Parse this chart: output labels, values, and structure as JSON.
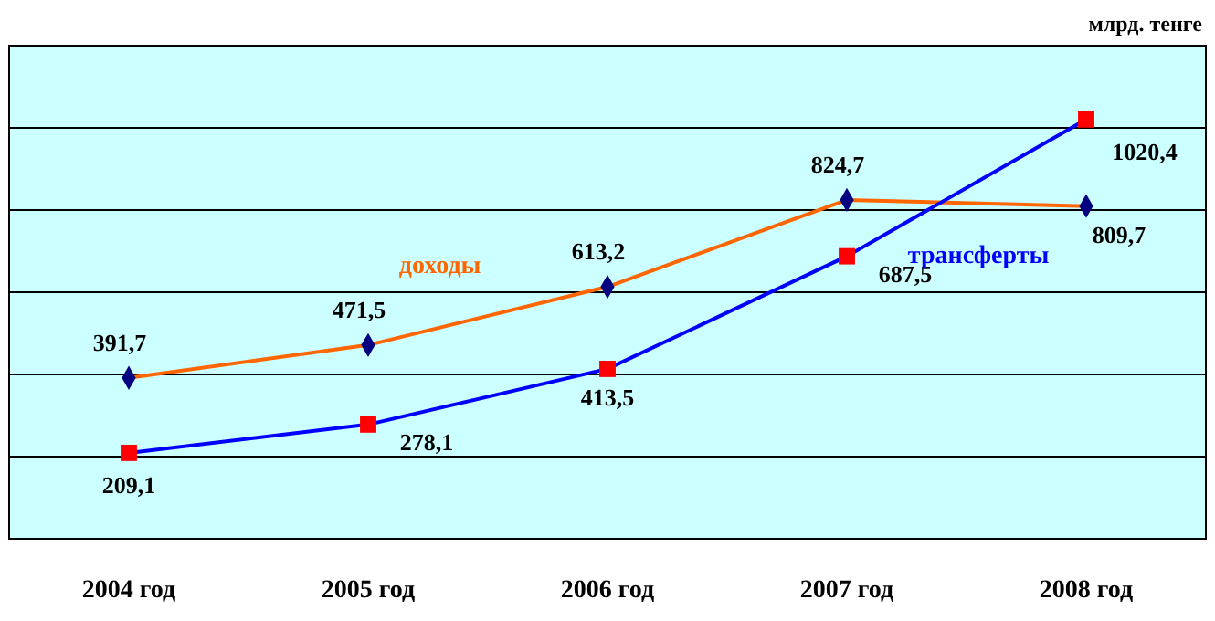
{
  "chart_data": {
    "type": "line",
    "ylabel": "млрд. тенге",
    "categories": [
      "2004 год",
      "2005 год",
      "2006 год",
      "2007 год",
      "2008 год"
    ],
    "series": [
      {
        "name": "доходы",
        "color": "#ff6600",
        "marker": "diamond",
        "values": [
          391.7,
          471.5,
          613.2,
          824.7,
          809.7
        ],
        "value_labels": [
          "391,7",
          "471,5",
          "613,2",
          "824,7",
          "809,7"
        ]
      },
      {
        "name": "трансферты",
        "color": "#0000ff",
        "marker": "square",
        "values": [
          209.1,
          278.1,
          413.5,
          687.5,
          1020.4
        ],
        "value_labels": [
          "209,1",
          "278,1",
          "413,5",
          "687,5",
          "1020,4"
        ]
      }
    ],
    "ylim": [
      0,
      1200
    ],
    "yticks": [
      {
        "value": 0,
        "label": null
      },
      {
        "value": 200,
        "label": null
      },
      {
        "value": 400,
        "label": null
      },
      {
        "value": 600,
        "label": null
      },
      {
        "value": 800,
        "label": null
      },
      {
        "value": 1000,
        "label": null
      },
      {
        "value": 1200,
        "label": null
      }
    ],
    "grid": "y",
    "tick_labels": "x",
    "line_style": "solid"
  }
}
